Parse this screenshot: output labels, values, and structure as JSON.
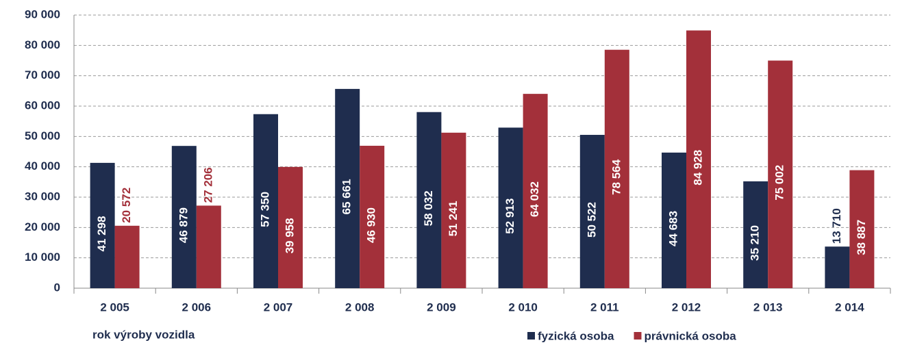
{
  "chart_data": {
    "type": "bar",
    "x_label": "rok výroby vozidla",
    "categories": [
      "2 005",
      "2 006",
      "2 007",
      "2 008",
      "2 009",
      "2 010",
      "2 011",
      "2 012",
      "2 013",
      "2 014"
    ],
    "series": [
      {
        "name": "fyzická osoba",
        "color": "#1f2d4e",
        "values": [
          41298,
          46879,
          57350,
          65661,
          58032,
          52913,
          50522,
          44683,
          35210,
          13710
        ],
        "value_labels": [
          "41 298",
          "46 879",
          "57 350",
          "65 661",
          "58 032",
          "52 913",
          "50 522",
          "44 683",
          "35 210",
          "13 710"
        ]
      },
      {
        "name": "právnická osoba",
        "color": "#a3303a",
        "values": [
          20572,
          27206,
          39958,
          46930,
          51241,
          64032,
          78564,
          84928,
          75002,
          38887
        ],
        "value_labels": [
          "20 572",
          "27 206",
          "39 958",
          "46 930",
          "51 241",
          "64 032",
          "78 564",
          "84 928",
          "75 002",
          "38 887"
        ]
      }
    ],
    "ylim": [
      0,
      90000
    ],
    "yticks": [
      0,
      {
        "value": 10000,
        "label": "10 000"
      },
      {
        "value": 20000,
        "label": "20 000"
      },
      {
        "value": 30000,
        "label": "30 000"
      },
      {
        "value": 40000,
        "label": "40 000"
      },
      {
        "value": 50000,
        "label": "50 000"
      },
      {
        "value": 60000,
        "label": "60 000"
      },
      {
        "value": 70000,
        "label": "70 000"
      },
      {
        "value": 80000,
        "label": "80 000"
      },
      {
        "value": 90000,
        "label": "90 000"
      }
    ],
    "grid": true,
    "legend": "bottom-right"
  }
}
